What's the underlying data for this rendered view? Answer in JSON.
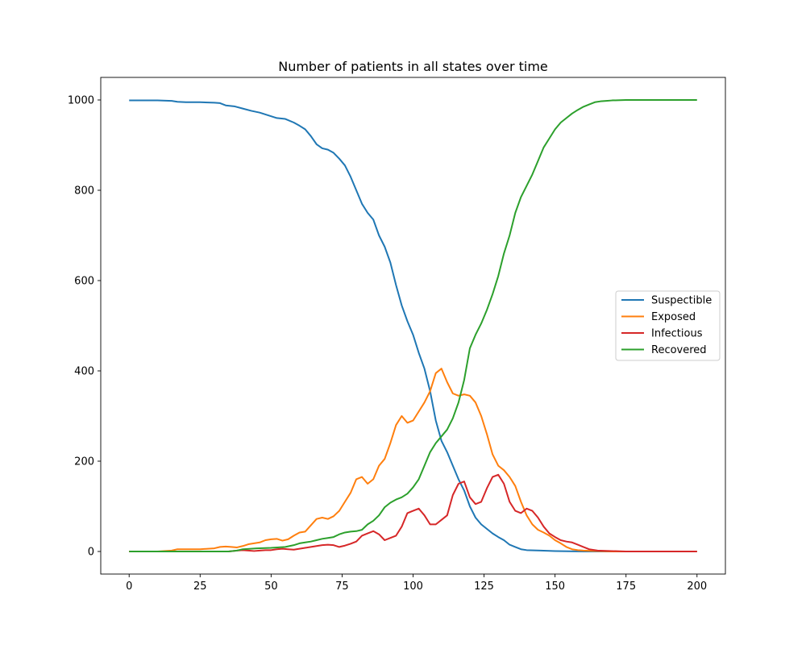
{
  "chart_data": {
    "type": "line",
    "title": "Number of patients in all states over time",
    "xlabel": "",
    "ylabel": "",
    "xlim": [
      -10,
      210
    ],
    "ylim": [
      -50,
      1050
    ],
    "xticks": [
      0,
      25,
      50,
      75,
      100,
      125,
      150,
      175,
      200
    ],
    "yticks": [
      0,
      200,
      400,
      600,
      800,
      1000
    ],
    "grid": false,
    "legend_position": "center-right",
    "series": [
      {
        "name": "Suspectible",
        "color": "#1f77b4",
        "points": [
          [
            0,
            999
          ],
          [
            5,
            999
          ],
          [
            10,
            999
          ],
          [
            15,
            998
          ],
          [
            17,
            996
          ],
          [
            20,
            995
          ],
          [
            25,
            995
          ],
          [
            30,
            994
          ],
          [
            32,
            993
          ],
          [
            34,
            988
          ],
          [
            37,
            986
          ],
          [
            40,
            981
          ],
          [
            43,
            976
          ],
          [
            46,
            972
          ],
          [
            49,
            966
          ],
          [
            52,
            960
          ],
          [
            55,
            958
          ],
          [
            58,
            950
          ],
          [
            60,
            943
          ],
          [
            62,
            935
          ],
          [
            64,
            920
          ],
          [
            66,
            902
          ],
          [
            68,
            893
          ],
          [
            70,
            890
          ],
          [
            72,
            883
          ],
          [
            74,
            870
          ],
          [
            76,
            855
          ],
          [
            78,
            830
          ],
          [
            80,
            800
          ],
          [
            82,
            770
          ],
          [
            84,
            750
          ],
          [
            86,
            735
          ],
          [
            88,
            700
          ],
          [
            90,
            675
          ],
          [
            92,
            640
          ],
          [
            94,
            590
          ],
          [
            96,
            545
          ],
          [
            98,
            510
          ],
          [
            100,
            480
          ],
          [
            102,
            440
          ],
          [
            104,
            405
          ],
          [
            106,
            355
          ],
          [
            108,
            290
          ],
          [
            110,
            245
          ],
          [
            112,
            220
          ],
          [
            114,
            190
          ],
          [
            116,
            160
          ],
          [
            118,
            135
          ],
          [
            120,
            100
          ],
          [
            122,
            75
          ],
          [
            124,
            60
          ],
          [
            126,
            50
          ],
          [
            128,
            40
          ],
          [
            130,
            32
          ],
          [
            132,
            25
          ],
          [
            134,
            15
          ],
          [
            136,
            10
          ],
          [
            138,
            5
          ],
          [
            140,
            3
          ],
          [
            145,
            2
          ],
          [
            150,
            1
          ],
          [
            160,
            0
          ],
          [
            170,
            0
          ],
          [
            180,
            0
          ],
          [
            190,
            0
          ],
          [
            200,
            0
          ]
        ]
      },
      {
        "name": "Exposed",
        "color": "#ff7f0e",
        "points": [
          [
            0,
            0
          ],
          [
            10,
            0
          ],
          [
            15,
            2
          ],
          [
            17,
            5
          ],
          [
            20,
            5
          ],
          [
            25,
            5
          ],
          [
            30,
            7
          ],
          [
            32,
            10
          ],
          [
            34,
            11
          ],
          [
            36,
            10
          ],
          [
            38,
            9
          ],
          [
            40,
            12
          ],
          [
            42,
            16
          ],
          [
            44,
            18
          ],
          [
            46,
            20
          ],
          [
            48,
            25
          ],
          [
            50,
            27
          ],
          [
            52,
            28
          ],
          [
            54,
            24
          ],
          [
            56,
            27
          ],
          [
            58,
            35
          ],
          [
            60,
            42
          ],
          [
            62,
            44
          ],
          [
            64,
            58
          ],
          [
            66,
            72
          ],
          [
            68,
            75
          ],
          [
            70,
            72
          ],
          [
            72,
            78
          ],
          [
            74,
            90
          ],
          [
            76,
            110
          ],
          [
            78,
            130
          ],
          [
            80,
            160
          ],
          [
            82,
            165
          ],
          [
            84,
            150
          ],
          [
            86,
            160
          ],
          [
            88,
            190
          ],
          [
            90,
            205
          ],
          [
            92,
            240
          ],
          [
            94,
            280
          ],
          [
            96,
            300
          ],
          [
            98,
            285
          ],
          [
            100,
            290
          ],
          [
            102,
            310
          ],
          [
            104,
            330
          ],
          [
            106,
            355
          ],
          [
            108,
            395
          ],
          [
            110,
            405
          ],
          [
            112,
            375
          ],
          [
            114,
            350
          ],
          [
            116,
            345
          ],
          [
            118,
            348
          ],
          [
            120,
            345
          ],
          [
            122,
            330
          ],
          [
            124,
            300
          ],
          [
            126,
            260
          ],
          [
            128,
            215
          ],
          [
            130,
            190
          ],
          [
            132,
            180
          ],
          [
            134,
            165
          ],
          [
            136,
            145
          ],
          [
            138,
            110
          ],
          [
            140,
            80
          ],
          [
            142,
            60
          ],
          [
            144,
            48
          ],
          [
            146,
            42
          ],
          [
            148,
            35
          ],
          [
            150,
            25
          ],
          [
            152,
            18
          ],
          [
            154,
            10
          ],
          [
            156,
            5
          ],
          [
            158,
            3
          ],
          [
            160,
            2
          ],
          [
            165,
            1
          ],
          [
            170,
            0
          ],
          [
            180,
            0
          ],
          [
            190,
            0
          ],
          [
            200,
            0
          ]
        ]
      },
      {
        "name": "Infectious",
        "color": "#d62728",
        "points": [
          [
            0,
            0
          ],
          [
            10,
            0
          ],
          [
            20,
            0
          ],
          [
            30,
            0
          ],
          [
            35,
            0
          ],
          [
            38,
            2
          ],
          [
            40,
            3
          ],
          [
            42,
            2
          ],
          [
            44,
            1
          ],
          [
            46,
            2
          ],
          [
            48,
            3
          ],
          [
            50,
            3
          ],
          [
            52,
            5
          ],
          [
            54,
            6
          ],
          [
            56,
            5
          ],
          [
            58,
            4
          ],
          [
            60,
            6
          ],
          [
            62,
            8
          ],
          [
            64,
            10
          ],
          [
            66,
            12
          ],
          [
            68,
            14
          ],
          [
            70,
            15
          ],
          [
            72,
            14
          ],
          [
            74,
            10
          ],
          [
            76,
            13
          ],
          [
            78,
            17
          ],
          [
            80,
            22
          ],
          [
            82,
            35
          ],
          [
            84,
            40
          ],
          [
            86,
            45
          ],
          [
            88,
            38
          ],
          [
            90,
            25
          ],
          [
            92,
            30
          ],
          [
            94,
            35
          ],
          [
            96,
            55
          ],
          [
            98,
            85
          ],
          [
            100,
            90
          ],
          [
            102,
            95
          ],
          [
            104,
            80
          ],
          [
            106,
            60
          ],
          [
            108,
            60
          ],
          [
            110,
            70
          ],
          [
            112,
            80
          ],
          [
            114,
            125
          ],
          [
            116,
            150
          ],
          [
            118,
            155
          ],
          [
            120,
            120
          ],
          [
            122,
            105
          ],
          [
            124,
            110
          ],
          [
            126,
            140
          ],
          [
            128,
            165
          ],
          [
            130,
            170
          ],
          [
            132,
            150
          ],
          [
            134,
            110
          ],
          [
            136,
            90
          ],
          [
            138,
            85
          ],
          [
            140,
            95
          ],
          [
            142,
            90
          ],
          [
            144,
            75
          ],
          [
            146,
            55
          ],
          [
            148,
            40
          ],
          [
            150,
            32
          ],
          [
            152,
            25
          ],
          [
            154,
            22
          ],
          [
            156,
            20
          ],
          [
            158,
            15
          ],
          [
            160,
            10
          ],
          [
            162,
            5
          ],
          [
            165,
            2
          ],
          [
            170,
            1
          ],
          [
            175,
            0
          ],
          [
            180,
            0
          ],
          [
            190,
            0
          ],
          [
            200,
            0
          ]
        ]
      },
      {
        "name": "Recovered",
        "color": "#2ca02c",
        "points": [
          [
            0,
            0
          ],
          [
            10,
            0
          ],
          [
            20,
            0
          ],
          [
            30,
            0
          ],
          [
            35,
            0
          ],
          [
            38,
            2
          ],
          [
            40,
            5
          ],
          [
            45,
            7
          ],
          [
            50,
            8
          ],
          [
            55,
            10
          ],
          [
            58,
            14
          ],
          [
            60,
            18
          ],
          [
            62,
            20
          ],
          [
            64,
            22
          ],
          [
            66,
            25
          ],
          [
            68,
            28
          ],
          [
            70,
            30
          ],
          [
            72,
            32
          ],
          [
            74,
            38
          ],
          [
            76,
            42
          ],
          [
            78,
            44
          ],
          [
            80,
            45
          ],
          [
            82,
            48
          ],
          [
            84,
            60
          ],
          [
            86,
            68
          ],
          [
            88,
            80
          ],
          [
            90,
            98
          ],
          [
            92,
            108
          ],
          [
            94,
            115
          ],
          [
            96,
            120
          ],
          [
            98,
            128
          ],
          [
            100,
            142
          ],
          [
            102,
            160
          ],
          [
            104,
            190
          ],
          [
            106,
            220
          ],
          [
            108,
            240
          ],
          [
            110,
            255
          ],
          [
            112,
            270
          ],
          [
            114,
            295
          ],
          [
            116,
            330
          ],
          [
            118,
            380
          ],
          [
            120,
            450
          ],
          [
            122,
            480
          ],
          [
            124,
            505
          ],
          [
            126,
            535
          ],
          [
            128,
            570
          ],
          [
            130,
            610
          ],
          [
            132,
            660
          ],
          [
            134,
            700
          ],
          [
            136,
            750
          ],
          [
            138,
            785
          ],
          [
            140,
            810
          ],
          [
            142,
            835
          ],
          [
            144,
            865
          ],
          [
            146,
            895
          ],
          [
            148,
            915
          ],
          [
            150,
            935
          ],
          [
            152,
            950
          ],
          [
            154,
            960
          ],
          [
            156,
            970
          ],
          [
            158,
            978
          ],
          [
            160,
            985
          ],
          [
            162,
            990
          ],
          [
            164,
            995
          ],
          [
            166,
            997
          ],
          [
            168,
            998
          ],
          [
            170,
            999
          ],
          [
            175,
            1000
          ],
          [
            180,
            1000
          ],
          [
            190,
            1000
          ],
          [
            200,
            1000
          ]
        ]
      }
    ]
  }
}
